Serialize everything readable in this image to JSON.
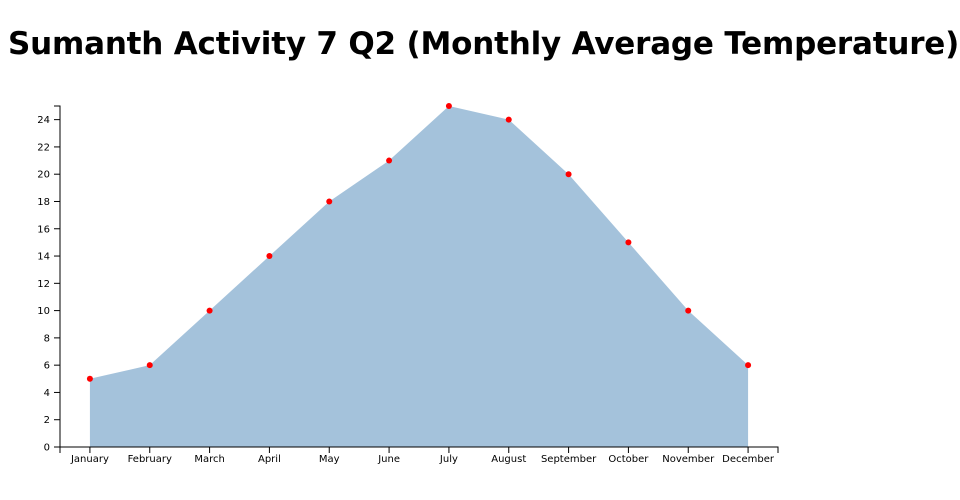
{
  "title": "Sumanth Activity 7 Q2 (Monthly Average Temperature)",
  "chart_data": {
    "type": "area",
    "title": "Sumanth Activity 7 Q2 (Monthly Average Temperature)",
    "xlabel": "",
    "ylabel": "",
    "categories": [
      "January",
      "February",
      "March",
      "April",
      "May",
      "June",
      "July",
      "August",
      "September",
      "October",
      "November",
      "December"
    ],
    "values": [
      5,
      6,
      10,
      14,
      18,
      21,
      25,
      24,
      20,
      15,
      10,
      6
    ],
    "ylim": [
      0,
      25
    ],
    "yticks": [
      "0",
      "2",
      "4",
      "6",
      "8",
      "10",
      "12",
      "14",
      "16",
      "18",
      "20",
      "22",
      "24"
    ],
    "grid": false,
    "legend": "none",
    "colors": {
      "area": "#a4c2db",
      "point": "#ff0000",
      "axis": "#000000"
    }
  }
}
